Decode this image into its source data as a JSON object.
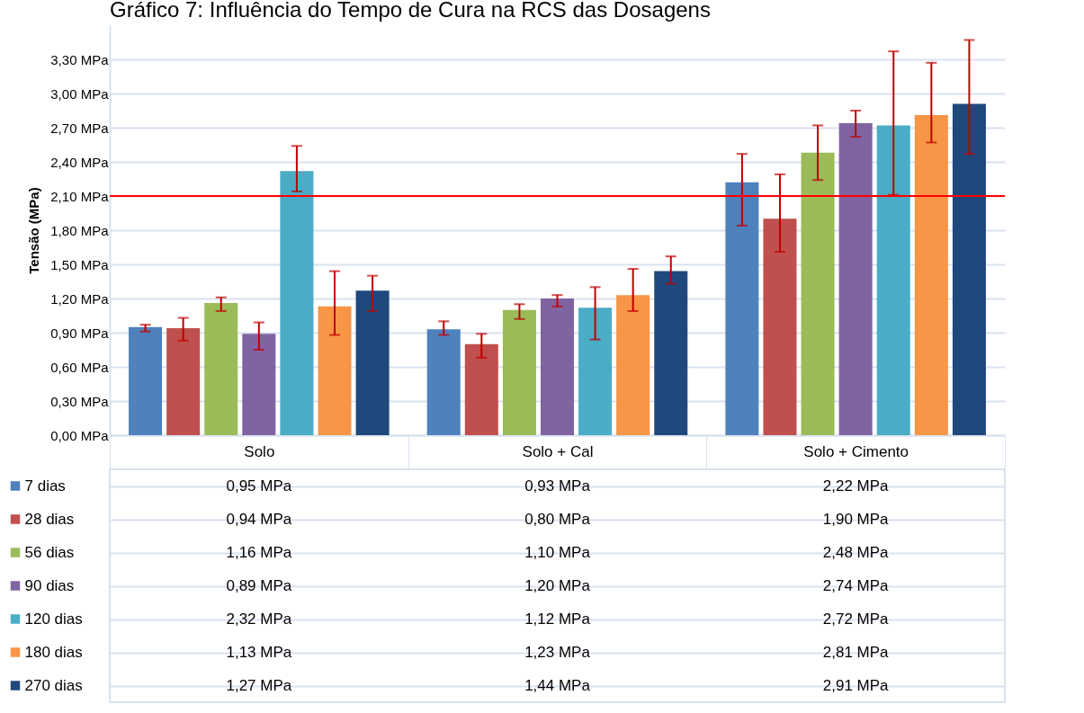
{
  "chart_data": {
    "type": "bar",
    "title": "Gráfico 7: Influência do Tempo de Cura na RCS das Dosagens",
    "ylabel": "Tensão (MPa)",
    "categories": [
      "Solo",
      "Solo + Cal",
      "Solo + Cimento"
    ],
    "series": [
      {
        "name": "7 dias",
        "color": "#4f81bd",
        "values": [
          0.95,
          0.93,
          2.22
        ],
        "value_labels": [
          "0,95 MPa",
          "0,93 MPa",
          "2,22 MPa"
        ],
        "errors": [
          [
            0.91,
            0.97
          ],
          [
            0.88,
            1.0
          ],
          [
            1.84,
            2.47
          ]
        ]
      },
      {
        "name": "28 dias",
        "color": "#c0504d",
        "values": [
          0.94,
          0.8,
          1.9
        ],
        "value_labels": [
          "0,94 MPa",
          "0,80 MPa",
          "1,90 MPa"
        ],
        "errors": [
          [
            0.83,
            1.03
          ],
          [
            0.68,
            0.89
          ],
          [
            1.61,
            2.29
          ]
        ]
      },
      {
        "name": "56 dias",
        "color": "#9bbb59",
        "values": [
          1.16,
          1.1,
          2.48
        ],
        "value_labels": [
          "1,16 MPa",
          "1,10 MPa",
          "2,48 MPa"
        ],
        "errors": [
          [
            1.09,
            1.21
          ],
          [
            1.02,
            1.15
          ],
          [
            2.24,
            2.72
          ]
        ]
      },
      {
        "name": "90 dias",
        "color": "#8064a2",
        "values": [
          0.89,
          1.2,
          2.74
        ],
        "value_labels": [
          "0,89 MPa",
          "1,20 MPa",
          "2,74 MPa"
        ],
        "errors": [
          [
            0.75,
            0.99
          ],
          [
            1.13,
            1.23
          ],
          [
            2.62,
            2.85
          ]
        ]
      },
      {
        "name": "120 dias",
        "color": "#4bacc6",
        "values": [
          2.32,
          1.12,
          2.72
        ],
        "value_labels": [
          "2,32 MPa",
          "1,12 MPa",
          "2,72 MPa"
        ],
        "errors": [
          [
            2.14,
            2.54
          ],
          [
            0.84,
            1.3
          ],
          [
            2.11,
            3.37
          ]
        ]
      },
      {
        "name": "180 dias",
        "color": "#f79646",
        "values": [
          1.13,
          1.23,
          2.81
        ],
        "value_labels": [
          "1,13 MPa",
          "1,23 MPa",
          "2,81 MPa"
        ],
        "errors": [
          [
            0.88,
            1.44
          ],
          [
            1.09,
            1.46
          ],
          [
            2.57,
            3.27
          ]
        ]
      },
      {
        "name": "270 dias",
        "color": "#1f497d",
        "values": [
          1.27,
          1.44,
          2.91
        ],
        "value_labels": [
          "1,27 MPa",
          "1,44 MPa",
          "2,91 MPa"
        ],
        "errors": [
          [
            1.09,
            1.4
          ],
          [
            1.33,
            1.57
          ],
          [
            2.47,
            3.47
          ]
        ]
      }
    ],
    "ylim": [
      0,
      3.6
    ],
    "yticks": [
      {
        "value": 0,
        "label": "0,00 MPa"
      },
      {
        "value": 0.3,
        "label": "0,30 MPa"
      },
      {
        "value": 0.6,
        "label": "0,60 MPa"
      },
      {
        "value": 0.9,
        "label": "0,90 MPa"
      },
      {
        "value": 1.2,
        "label": "1,20 MPa"
      },
      {
        "value": 1.5,
        "label": "1,50 MPa"
      },
      {
        "value": 1.8,
        "label": "1,80 MPa"
      },
      {
        "value": 2.1,
        "label": "2,10 MPa"
      },
      {
        "value": 2.4,
        "label": "2,40 MPa"
      },
      {
        "value": 2.7,
        "label": "2,70 MPa"
      },
      {
        "value": 3.0,
        "label": "3,00 MPa"
      },
      {
        "value": 3.3,
        "label": "3,30 MPa"
      }
    ],
    "ref_lines": [
      {
        "axis": "y",
        "value": 2.1,
        "color": "#ff0000"
      }
    ],
    "grid": "y",
    "legend": "bottom"
  }
}
